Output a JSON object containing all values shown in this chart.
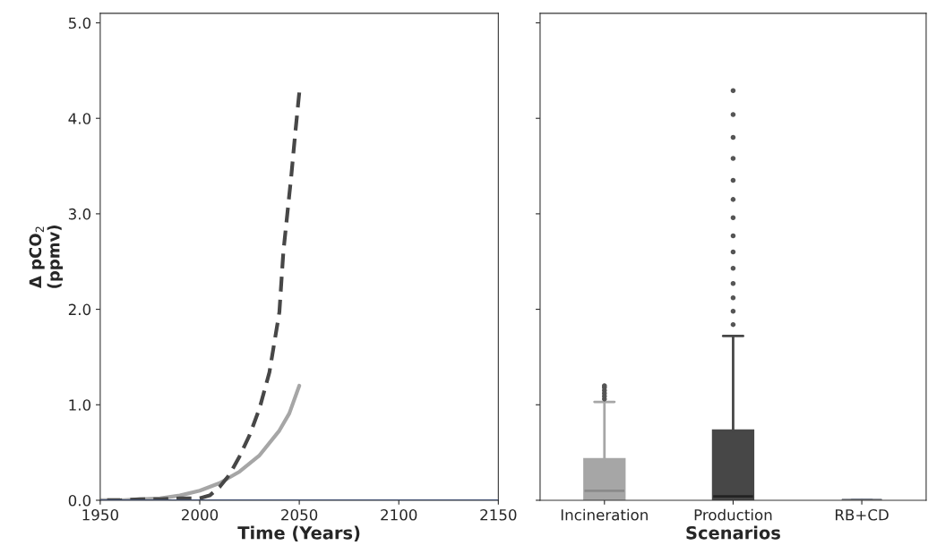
{
  "chart_data": [
    {
      "type": "line",
      "xlabel": "Time (Years)",
      "ylabel": "Δ pCO$_{2}$\n(ppmv)",
      "xlim": [
        1950,
        2150
      ],
      "xticks": [
        1950,
        2000,
        2050,
        2100,
        2150
      ],
      "ylim": [
        0,
        5.1
      ],
      "yticks": [
        {
          "value": 0,
          "label": "0.0"
        },
        {
          "value": 1,
          "label": "1.0"
        },
        {
          "value": 2,
          "label": "2.0"
        },
        {
          "value": 3,
          "label": "3.0"
        },
        {
          "value": 4,
          "label": "4.0"
        },
        {
          "value": 5,
          "label": "5.0"
        }
      ],
      "grid": false,
      "legend": false,
      "series": [
        {
          "color": "#a6a6a6",
          "line_style": "solid",
          "x": [
            1950,
            1960,
            1970,
            1980,
            1990,
            2000,
            2010,
            2020,
            2030,
            2040,
            2045,
            2050
          ],
          "values": [
            0,
            0,
            0.01,
            0.02,
            0.05,
            0.1,
            0.18,
            0.3,
            0.47,
            0.73,
            0.91,
            1.2
          ]
        },
        {
          "color": "#474747",
          "line_style": "dashed",
          "x": [
            1950,
            1960,
            1970,
            1980,
            1990,
            2000,
            2005,
            2010,
            2015,
            2020,
            2025,
            2030,
            2035,
            2040,
            2042,
            2044,
            2046,
            2048,
            2050
          ],
          "values": [
            0,
            0,
            0.01,
            0.01,
            0.02,
            0.02,
            0.05,
            0.14,
            0.27,
            0.46,
            0.68,
            0.96,
            1.34,
            1.97,
            2.6,
            3.0,
            3.4,
            3.85,
            4.27
          ]
        },
        {
          "color": "#3b4a6b",
          "line_style": "solid",
          "x": [
            1950,
            2150
          ],
          "values": [
            0,
            0
          ]
        }
      ]
    },
    {
      "type": "box",
      "xlabel": "Scenarios",
      "categories": [
        "Incineration",
        "Production",
        "RB+CD"
      ],
      "colors": [
        "#a6a6a6",
        "#474747",
        "#3b4a6b"
      ],
      "ylim": [
        0,
        5.1
      ],
      "yticks": [
        {
          "value": 0,
          "label": null
        },
        {
          "value": 1,
          "label": null
        },
        {
          "value": 2,
          "label": null
        },
        {
          "value": 3,
          "label": null
        },
        {
          "value": 4,
          "label": null
        },
        {
          "value": 5,
          "label": null
        }
      ],
      "tick_labels": "x",
      "grid": false,
      "boxes": [
        {
          "low": 0,
          "q1": 0,
          "median": 0.1,
          "q3": 0.43,
          "high": 1.03,
          "outliers": [
            1.06,
            1.09,
            1.12,
            1.15,
            1.18,
            1.2
          ]
        },
        {
          "low": 0,
          "q1": 0,
          "median": 0.04,
          "q3": 0.73,
          "high": 1.72,
          "outliers": [
            1.84,
            1.98,
            2.12,
            2.27,
            2.43,
            2.6,
            2.77,
            2.96,
            3.15,
            3.35,
            3.58,
            3.8,
            4.04,
            4.29
          ]
        },
        {
          "low": 0,
          "q1": 0,
          "median": 0,
          "q3": 0,
          "high": 0
        }
      ]
    }
  ]
}
